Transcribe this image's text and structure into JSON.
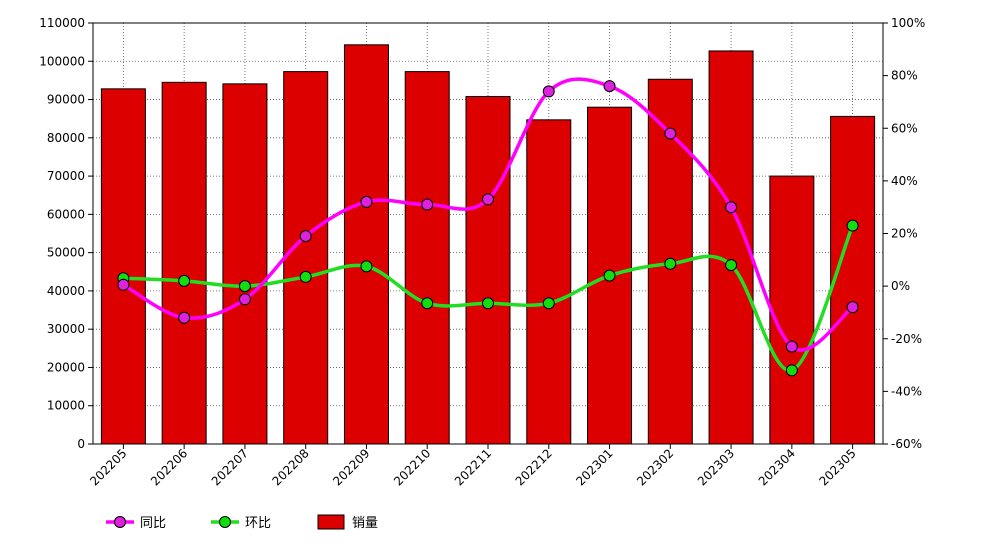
{
  "chart_data": {
    "type": "bar",
    "categories": [
      "202205",
      "202206",
      "202207",
      "202208",
      "202209",
      "202210",
      "202211",
      "202212",
      "202301",
      "202302",
      "202303",
      "202304",
      "202305"
    ],
    "series": [
      {
        "name": "销量",
        "type": "bar",
        "axis": "left",
        "color": "#dd0000",
        "values": [
          92800,
          94500,
          94100,
          97300,
          104300,
          97300,
          90800,
          84700,
          88000,
          95300,
          102700,
          70000,
          85600
        ]
      },
      {
        "name": "同比",
        "type": "line",
        "axis": "right",
        "color": "#ff00ff",
        "marker_color": "#dd22dd",
        "values": [
          0.5,
          -12,
          -5,
          19,
          32,
          31,
          33,
          74,
          76,
          58,
          30,
          -23,
          -8
        ]
      },
      {
        "name": "环比",
        "type": "line",
        "axis": "right",
        "color": "#22dd22",
        "marker_color": "#11dd11",
        "values": [
          3,
          2,
          0,
          3.5,
          7.5,
          -6.5,
          -6.5,
          -6.5,
          4,
          8.5,
          8,
          -32,
          23
        ]
      }
    ],
    "left_axis": {
      "min": 0,
      "max": 110000,
      "step": 10000,
      "tick_labels": [
        "0",
        "10000",
        "20000",
        "30000",
        "40000",
        "50000",
        "60000",
        "70000",
        "80000",
        "90000",
        "100000",
        "110000"
      ]
    },
    "right_axis": {
      "min": -60,
      "max": 100,
      "step": 20,
      "tick_labels": [
        "-60%",
        "-40%",
        "-20%",
        "0%",
        "20%",
        "40%",
        "60%",
        "80%",
        "100%"
      ]
    },
    "grid": true,
    "legend_position": "bottom-left",
    "legend": [
      {
        "label": "同比",
        "kind": "line-marker",
        "color": "#ff00ff",
        "marker_color": "#dd22dd"
      },
      {
        "label": "环比",
        "kind": "line-marker",
        "color": "#22dd22",
        "marker_color": "#11dd11"
      },
      {
        "label": "销量",
        "kind": "box",
        "color": "#dd0000"
      }
    ]
  }
}
